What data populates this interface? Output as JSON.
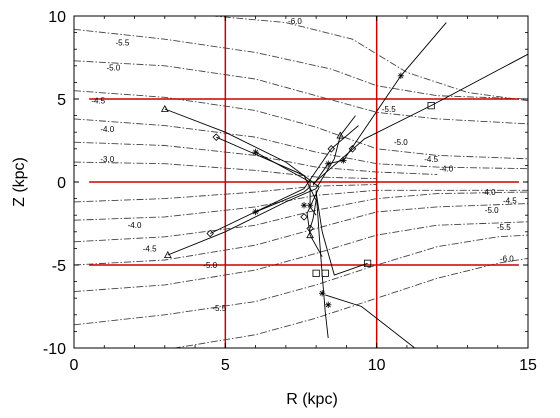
{
  "chart_data": {
    "type": "line",
    "xlabel": "R (kpc)",
    "ylabel": "Z (kpc)",
    "xlim": [
      0,
      15
    ],
    "ylim": [
      -10,
      10
    ],
    "x_ticks": [
      "0",
      "5",
      "10",
      "15"
    ],
    "y_ticks": [
      "-10",
      "-5",
      "0",
      "5",
      "10"
    ],
    "grid": false,
    "reference_lines": {
      "r": [
        5,
        10
      ],
      "z": [
        -5,
        0,
        5
      ],
      "color": "#cc0000"
    },
    "contours": [
      {
        "value": -6.0,
        "points": [
          [
            0.0,
            10.4
          ],
          [
            4,
            10.1
          ],
          [
            7,
            9.6
          ],
          [
            9.2,
            8.6
          ],
          [
            11,
            6.6
          ],
          [
            13,
            5.4
          ],
          [
            15,
            4.9
          ]
        ],
        "labels": [
          {
            "text": "-6.0",
            "x": 7.3,
            "y": 9.7
          }
        ]
      },
      {
        "value": -5.5,
        "points": [
          [
            0.0,
            9.2
          ],
          [
            3,
            8.6
          ],
          [
            6,
            7.8
          ],
          [
            8.5,
            6.8
          ],
          [
            10,
            5.8
          ],
          [
            12,
            5.2
          ],
          [
            15,
            5.0
          ]
        ],
        "labels": [
          {
            "text": "-5.5",
            "x": 1.6,
            "y": 8.4
          },
          {
            "text": "-5.5",
            "x": 10.4,
            "y": 4.4
          }
        ]
      },
      {
        "value": -5.0,
        "points": [
          [
            0.0,
            7.3
          ],
          [
            3,
            7.0
          ],
          [
            6,
            6.2
          ],
          [
            8,
            5.2
          ],
          [
            10,
            4.2
          ],
          [
            12,
            3.8
          ],
          [
            15,
            3.5
          ]
        ],
        "labels": [
          {
            "text": "-5.0",
            "x": 1.3,
            "y": 6.9
          },
          {
            "text": "-5.0",
            "x": 10.8,
            "y": 2.4
          }
        ]
      },
      {
        "value": -4.5,
        "points": [
          [
            0.0,
            5.5
          ],
          [
            3,
            5.1
          ],
          [
            6,
            4.3
          ],
          [
            8,
            3.3
          ],
          [
            10,
            2.0
          ],
          [
            12,
            1.6
          ],
          [
            15,
            1.4
          ]
        ],
        "labels": [
          {
            "text": "-4.5",
            "x": 0.8,
            "y": 4.9
          },
          {
            "text": "-4.5",
            "x": 11.8,
            "y": 1.4
          }
        ]
      },
      {
        "value": -4.0,
        "points": [
          [
            0.0,
            3.8
          ],
          [
            3,
            3.4
          ],
          [
            6,
            2.7
          ],
          [
            8,
            1.8
          ],
          [
            10,
            1.1
          ],
          [
            12,
            0.9
          ],
          [
            15,
            0.8
          ]
        ],
        "labels": [
          {
            "text": "-4.0",
            "x": 1.1,
            "y": 3.2
          },
          {
            "text": "-4.0",
            "x": 12.3,
            "y": 0.8
          }
        ]
      },
      {
        "value": -3.5,
        "points": [
          [
            0.0,
            2.4
          ],
          [
            3,
            2.2
          ],
          [
            6,
            1.6
          ],
          [
            8,
            0.9
          ],
          [
            10,
            0.6
          ],
          [
            12,
            0.45
          ]
        ],
        "labels": []
      },
      {
        "value": -3.0,
        "points": [
          [
            0.0,
            1.2
          ],
          [
            3,
            1.1
          ],
          [
            6,
            0.7
          ],
          [
            8,
            0.3
          ],
          [
            10,
            0.2
          ]
        ],
        "labels": [
          {
            "text": "-3.0",
            "x": 1.1,
            "y": 1.4
          }
        ]
      },
      {
        "value": -3.0,
        "points": [
          [
            0.0,
            -1.2
          ],
          [
            3,
            -1.0
          ],
          [
            6,
            -0.6
          ],
          [
            8,
            -0.25
          ],
          [
            10,
            -0.15
          ]
        ],
        "labels": []
      },
      {
        "value": -3.5,
        "points": [
          [
            0.0,
            -2.3
          ],
          [
            3,
            -2.1
          ],
          [
            6,
            -1.5
          ],
          [
            8,
            -0.8
          ],
          [
            10,
            -0.5
          ],
          [
            12,
            -0.5
          ],
          [
            15,
            -0.5
          ]
        ],
        "labels": []
      },
      {
        "value": -4.0,
        "points": [
          [
            0.0,
            -3.6
          ],
          [
            3,
            -3.3
          ],
          [
            6,
            -2.6
          ],
          [
            8,
            -1.7
          ],
          [
            10,
            -1.0
          ],
          [
            12,
            -0.7
          ],
          [
            15,
            -0.6
          ]
        ],
        "labels": [
          {
            "text": "-4.0",
            "x": 2.0,
            "y": -2.6
          },
          {
            "text": "-4.0",
            "x": 13.7,
            "y": -0.6
          }
        ]
      },
      {
        "value": -4.5,
        "points": [
          [
            0.0,
            -5.0
          ],
          [
            3,
            -4.7
          ],
          [
            6,
            -3.8
          ],
          [
            8,
            -2.8
          ],
          [
            10,
            -1.8
          ],
          [
            12,
            -1.5
          ],
          [
            15,
            -1.3
          ]
        ],
        "labels": [
          {
            "text": "-4.5",
            "x": 2.5,
            "y": -4.0
          },
          {
            "text": "-4.5",
            "x": 14.4,
            "y": -1.1
          }
        ]
      },
      {
        "value": -5.0,
        "points": [
          [
            0.0,
            -6.6
          ],
          [
            3,
            -6.2
          ],
          [
            6,
            -5.3
          ],
          [
            8,
            -4.3
          ],
          [
            10,
            -3.2
          ],
          [
            12,
            -2.6
          ],
          [
            15,
            -2.4
          ]
        ],
        "labels": [
          {
            "text": "-5.0",
            "x": 4.5,
            "y": -5.0
          },
          {
            "text": "-5.0",
            "x": 13.8,
            "y": -1.7
          }
        ]
      },
      {
        "value": -5.5,
        "points": [
          [
            0.0,
            -8.6
          ],
          [
            3,
            -8.0
          ],
          [
            6,
            -7.2
          ],
          [
            8,
            -6.2
          ],
          [
            10,
            -5.0
          ],
          [
            12,
            -3.9
          ],
          [
            14,
            -3.3
          ],
          [
            15,
            -3.2
          ]
        ],
        "labels": [
          {
            "text": "-5.5",
            "x": 4.8,
            "y": -7.6
          },
          {
            "text": "-5.5",
            "x": 14.2,
            "y": -2.7
          }
        ]
      },
      {
        "value": -6.0,
        "points": [
          [
            0.0,
            -10.4
          ],
          [
            3,
            -10.1
          ],
          [
            6,
            -9.2
          ],
          [
            8,
            -8.2
          ],
          [
            10,
            -7.0
          ],
          [
            12,
            -5.8
          ],
          [
            14,
            -4.9
          ],
          [
            15,
            -4.6
          ]
        ],
        "labels": [
          {
            "text": "-6.0",
            "x": 14.3,
            "y": -4.6
          }
        ]
      }
    ],
    "series": [
      {
        "marker": "triangle",
        "points": [
          [
            3.0,
            4.4
          ],
          [
            5.0,
            3.0
          ],
          [
            7.0,
            1.2
          ],
          [
            8.1,
            -0.3
          ],
          [
            7.7,
            -1.9
          ],
          [
            7.8,
            -3.2
          ],
          [
            8.2,
            -4.5
          ]
        ],
        "markers_at": [
          [
            3.0,
            4.4
          ],
          [
            7.8,
            -3.2
          ]
        ]
      },
      {
        "marker": "diamond",
        "points": [
          [
            4.7,
            2.7
          ],
          [
            7.6,
            0.4
          ],
          [
            8.0,
            -1.1
          ],
          [
            7.9,
            -2.2
          ],
          [
            7.8,
            -2.8
          ]
        ],
        "markers_at": [
          [
            4.7,
            2.7
          ],
          [
            7.6,
            -2.1
          ],
          [
            7.8,
            -2.8
          ]
        ]
      },
      {
        "marker": "star",
        "points": [
          [
            6.0,
            1.8
          ],
          [
            7.8,
            0.0
          ],
          [
            7.8,
            -1.5
          ],
          [
            8.0,
            -2.0
          ]
        ],
        "markers_at": [
          [
            6.0,
            1.8
          ],
          [
            7.6,
            -1.4
          ],
          [
            7.8,
            -1.4
          ]
        ]
      },
      {
        "marker": "star",
        "points": [
          [
            6.0,
            -1.8
          ],
          [
            7.6,
            -0.6
          ],
          [
            7.8,
            -0.3
          ]
        ],
        "markers_at": [
          [
            6.0,
            -1.8
          ]
        ]
      },
      {
        "marker": "triangle",
        "points": [
          [
            3.1,
            -4.4
          ],
          [
            5.0,
            -3.0
          ],
          [
            7.0,
            -1.2
          ],
          [
            8.0,
            -0.4
          ],
          [
            8.6,
            1.4
          ],
          [
            8.8,
            2.8
          ],
          [
            9.3,
            4.0
          ]
        ],
        "markers_at": [
          [
            3.1,
            -4.4
          ],
          [
            8.8,
            2.8
          ]
        ]
      },
      {
        "marker": "diamond",
        "points": [
          [
            4.5,
            -3.1
          ],
          [
            7.6,
            -0.4
          ],
          [
            8.5,
            2.0
          ],
          [
            9.4,
            3.4
          ]
        ],
        "markers_at": [
          [
            4.5,
            -3.1
          ],
          [
            8.5,
            2.0
          ],
          [
            9.2,
            2.0
          ]
        ]
      },
      {
        "marker": "star",
        "points": [
          [
            7.9,
            -0.2
          ],
          [
            8.4,
            1.1
          ],
          [
            8.9,
            1.3
          ],
          [
            10.8,
            6.4
          ],
          [
            12.3,
            9.6
          ]
        ],
        "markers_at": [
          [
            8.4,
            1.1
          ],
          [
            8.9,
            1.3
          ],
          [
            10.8,
            6.4
          ]
        ]
      },
      {
        "marker": "square",
        "points": [
          [
            7.9,
            -0.1
          ],
          [
            9.6,
            2.6
          ],
          [
            11.8,
            4.6
          ],
          [
            15.0,
            7.7
          ]
        ],
        "markers_at": [
          [
            11.8,
            4.6
          ]
        ]
      },
      {
        "marker": "square",
        "points": [
          [
            8.0,
            -0.6
          ],
          [
            8.2,
            -3.0
          ],
          [
            8.6,
            -5.6
          ],
          [
            9.7,
            -4.9
          ]
        ],
        "markers_at": [
          [
            8.0,
            -5.5
          ],
          [
            8.3,
            -5.5
          ],
          [
            9.7,
            -4.9
          ]
        ]
      },
      {
        "marker": "star",
        "points": [
          [
            8.0,
            -0.5
          ],
          [
            8.1,
            -3.2
          ],
          [
            8.2,
            -5.6
          ],
          [
            8.3,
            -7.8
          ],
          [
            8.4,
            -9.4
          ]
        ],
        "markers_at": [
          [
            8.2,
            -6.7
          ],
          [
            8.4,
            -7.4
          ]
        ]
      },
      {
        "marker": "none",
        "points": [
          [
            8.3,
            -6.8
          ],
          [
            9.5,
            -7.5
          ],
          [
            11.4,
            -10.2
          ]
        ],
        "markers_at": []
      }
    ]
  }
}
